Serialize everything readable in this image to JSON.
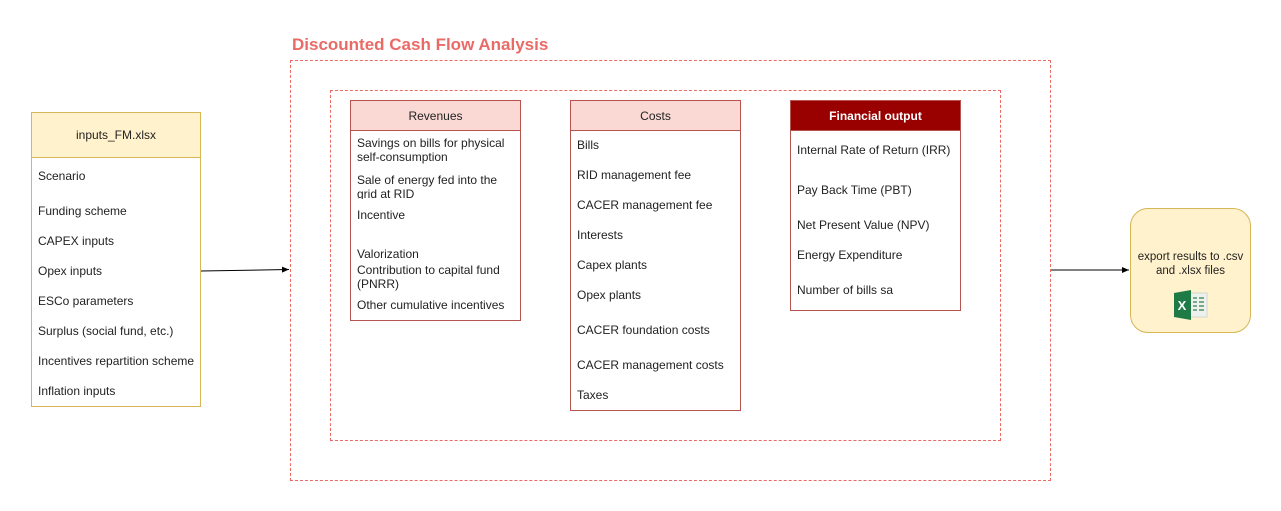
{
  "title": "Discounted Cash Flow Analysis",
  "inputs": {
    "title": "inputs_FM.xlsx",
    "items": [
      "Scenario",
      "Funding scheme",
      "CAPEX inputs",
      "Opex inputs",
      "ESCo parameters",
      "Surplus (social fund, etc.)",
      "Incentives repartition scheme",
      "Inflation inputs"
    ]
  },
  "revenues": {
    "title": "Revenues",
    "items": [
      "Savings on bills for physical self-consumption",
      "Sale of energy fed into the grid at RID",
      "Incentive",
      "Valorization",
      "Contribution to capital fund (PNRR)",
      "Other cumulative incentives"
    ]
  },
  "costs": {
    "title": "Costs",
    "items": [
      "Bills",
      "RID management fee",
      "CACER management fee",
      "Interests",
      "Capex plants",
      "Opex plants",
      "CACER foundation costs",
      "CACER management costs",
      "Taxes"
    ]
  },
  "financial_output": {
    "title": "Financial output",
    "items": [
      "Internal Rate of Return (IRR)",
      "Pay Back Time (PBT)",
      "Net Present Value (NPV)",
      "Energy Expenditure",
      "Number of bills sa"
    ]
  },
  "export": {
    "label": "export results to .csv and .xlsx files",
    "icon": "excel-icon"
  },
  "colors": {
    "accent_red": "#ea6b66",
    "revenue_fill": "#fad9d5",
    "box_border": "#b85450",
    "financial_fill": "#990000",
    "input_fill": "#fff2cc",
    "input_border": "#d6b656"
  }
}
